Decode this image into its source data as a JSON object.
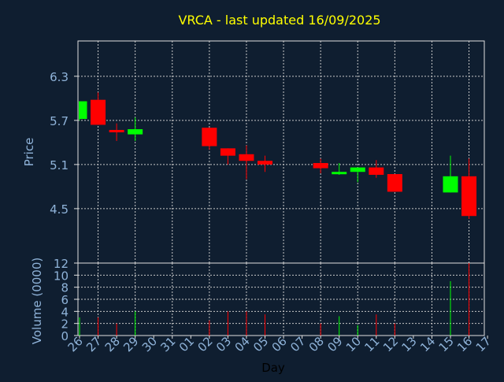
{
  "colors": {
    "background": "#0f1e30",
    "title": "#ffff00",
    "axis_text": "#8fb3d9",
    "frame": "#e0e0e0",
    "grid": "#c8c8c8",
    "up": "#00ff00",
    "down": "#ff0000",
    "xlabel": "#000000"
  },
  "chart_data": {
    "type": "candlestick",
    "title": "VRCA - last updated 16/09/2025",
    "xlabel": "Day",
    "grid": true,
    "x_tick_labels": [
      "26",
      "27",
      "28",
      "29",
      "30",
      "31",
      "01",
      "02",
      "03",
      "04",
      "05",
      "06",
      "07",
      "08",
      "09",
      "10",
      "11",
      "12",
      "13",
      "14",
      "15",
      "16",
      "17"
    ],
    "price_panel": {
      "ylabel": "Price",
      "ylim": [
        3.76,
        6.78
      ],
      "yticks": [
        4.5,
        5.1,
        5.7,
        6.3
      ],
      "ytick_labels": [
        "4.5",
        "5.1",
        "5.7",
        "6.3"
      ]
    },
    "volume_panel": {
      "ylabel": "Volume (0000)",
      "ylim": [
        0,
        12
      ],
      "yticks": [
        0,
        2,
        4,
        6,
        8,
        10,
        12
      ],
      "ytick_labels": [
        "0",
        "2",
        "4",
        "6",
        "8",
        "10",
        "12"
      ]
    },
    "candles": [
      {
        "x": 0,
        "open": 5.72,
        "close": 5.96,
        "high": 5.96,
        "low": 5.7,
        "volume": 3.0
      },
      {
        "x": 1,
        "open": 5.98,
        "close": 5.64,
        "high": 6.08,
        "low": 5.64,
        "volume": 3.0
      },
      {
        "x": 2,
        "open": 5.57,
        "close": 5.55,
        "high": 5.66,
        "low": 5.42,
        "volume": 2.0
      },
      {
        "x": 3,
        "open": 5.51,
        "close": 5.58,
        "high": 5.74,
        "low": 5.42,
        "volume": 4.0
      },
      {
        "x": 7,
        "open": 5.6,
        "close": 5.35,
        "high": 5.6,
        "low": 5.3,
        "volume": 2.5
      },
      {
        "x": 8,
        "open": 5.32,
        "close": 5.22,
        "high": 5.32,
        "low": 5.1,
        "volume": 4.0
      },
      {
        "x": 9,
        "open": 5.24,
        "close": 5.15,
        "high": 5.36,
        "low": 4.9,
        "volume": 4.0
      },
      {
        "x": 10,
        "open": 5.15,
        "close": 5.1,
        "high": 5.22,
        "low": 5.0,
        "volume": 3.5
      },
      {
        "x": 13,
        "open": 5.12,
        "close": 5.05,
        "high": 5.18,
        "low": 4.98,
        "volume": 2.0
      },
      {
        "x": 14,
        "open": 4.98,
        "close": 5.0,
        "high": 5.12,
        "low": 4.96,
        "volume": 3.2
      },
      {
        "x": 15,
        "open": 5.0,
        "close": 5.06,
        "high": 5.06,
        "low": 4.86,
        "volume": 1.7
      },
      {
        "x": 16,
        "open": 5.06,
        "close": 4.96,
        "high": 5.16,
        "low": 4.92,
        "volume": 3.5
      },
      {
        "x": 17,
        "open": 4.97,
        "close": 4.73,
        "high": 4.97,
        "low": 4.73,
        "volume": 2.0
      },
      {
        "x": 20,
        "open": 4.72,
        "close": 4.94,
        "high": 5.22,
        "low": 4.72,
        "volume": 9.0
      },
      {
        "x": 21,
        "open": 4.94,
        "close": 4.4,
        "high": 5.18,
        "low": 4.36,
        "volume": 12.0
      }
    ]
  }
}
